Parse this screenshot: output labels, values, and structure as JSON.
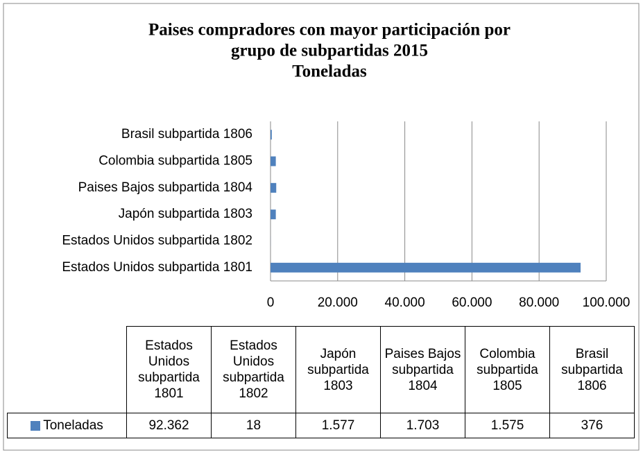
{
  "chart_data": {
    "type": "barh",
    "title": [
      "Paises compradores con mayor participación por",
      "grupo de subpartidas 2015",
      "Toneladas"
    ],
    "categories": [
      "Estados Unidos subpartida 1801",
      "Estados Unidos subpartida 1802",
      "Japón subpartida 1803",
      "Paises Bajos subpartida 1804",
      "Colombia subpartida 1805",
      "Brasil subpartida 1806"
    ],
    "series": [
      {
        "name": "Toneladas",
        "color": "#4f81bd",
        "values": [
          92362,
          18,
          1577,
          1703,
          1575,
          376
        ],
        "value_labels": [
          "92.362",
          "18",
          "1.577",
          "1.703",
          "1.575",
          "376"
        ]
      }
    ],
    "xlim": [
      0,
      100000
    ],
    "xticks": [
      0,
      {
        "value": 20000,
        "label": "20.000"
      },
      {
        "value": 40000,
        "label": "40.000"
      },
      {
        "value": 60000,
        "label": "60.000"
      },
      {
        "value": 80000,
        "label": "80.000"
      },
      {
        "value": 100000,
        "label": "100.000"
      }
    ],
    "grid": true
  }
}
